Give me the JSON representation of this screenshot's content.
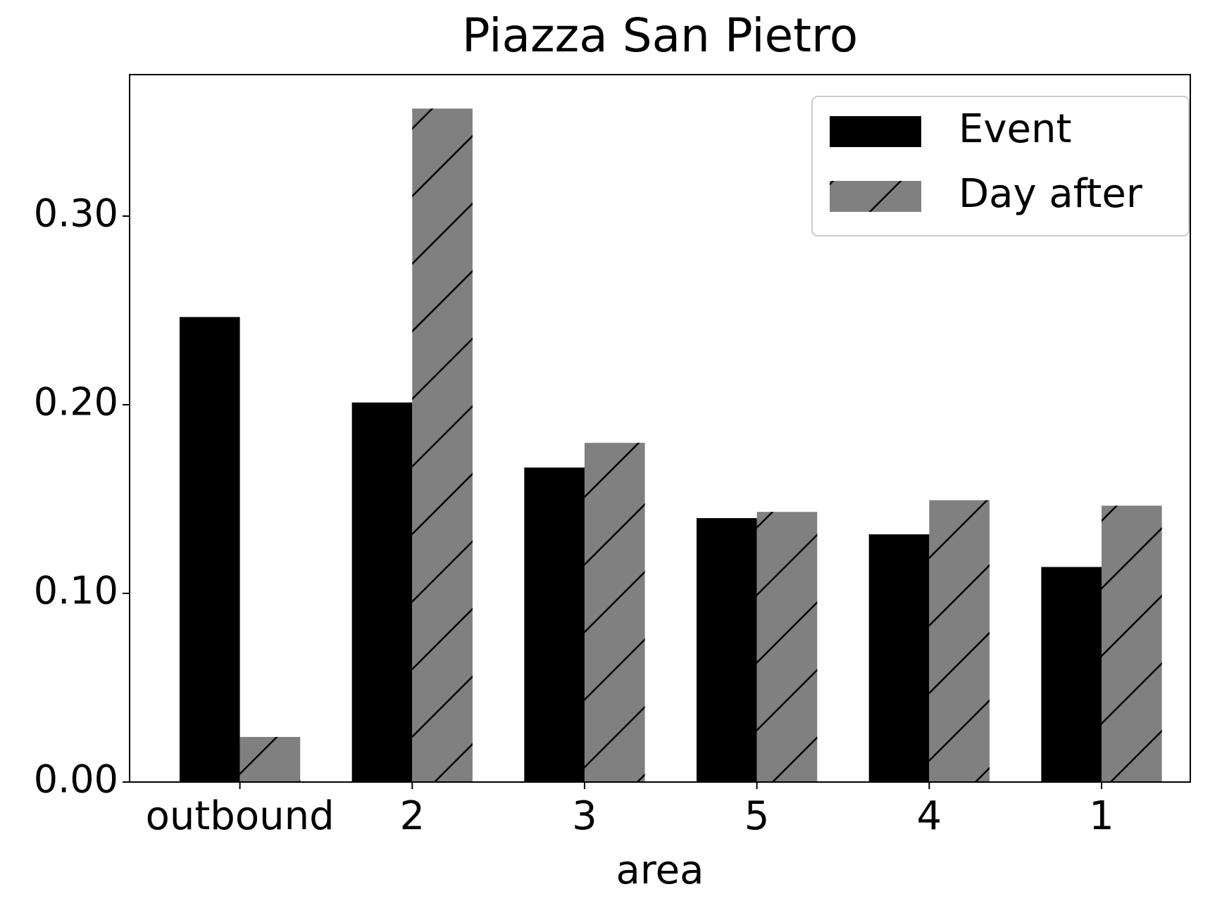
{
  "chart_data": {
    "type": "bar",
    "title": "Piazza San Pietro",
    "xlabel": "area",
    "categories": [
      "outbound",
      "2",
      "3",
      "5",
      "4",
      "1"
    ],
    "series": [
      {
        "name": "Event",
        "color": "#000000",
        "values": [
          0.2465,
          0.2012,
          0.1667,
          0.1399,
          0.1313,
          0.114
        ]
      },
      {
        "name": "Day after",
        "color": "#808080",
        "hatch": "/",
        "values": [
          0.0239,
          0.357,
          0.1798,
          0.1432,
          0.1494,
          0.1465
        ]
      }
    ],
    "ylim": [
      0,
      0.375
    ],
    "yticks": [
      {
        "value": 0,
        "label": "0.00"
      },
      {
        "value": 0.1,
        "label": "0.10"
      },
      {
        "value": 0.2,
        "label": "0.20"
      },
      {
        "value": 0.3,
        "label": "0.30"
      }
    ],
    "legend": "upper right"
  }
}
